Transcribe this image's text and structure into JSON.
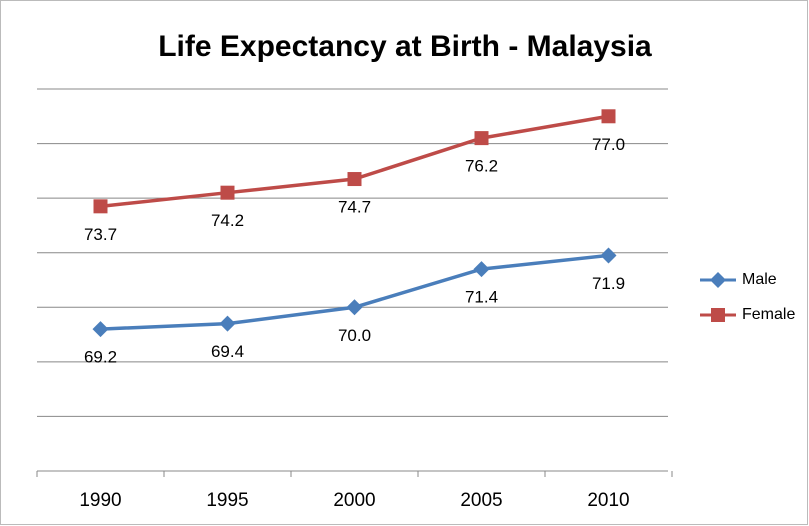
{
  "chart_data": {
    "type": "line",
    "title": "Life Expectancy at Birth - Malaysia",
    "categories": [
      "1990",
      "1995",
      "2000",
      "2005",
      "2010"
    ],
    "series": [
      {
        "name": "Male",
        "color": "#4a7ebb",
        "marker": "diamond",
        "values": [
          69.2,
          69.4,
          70.0,
          71.4,
          71.9
        ],
        "value_labels": [
          "69.2",
          "69.4",
          "70.0",
          "71.4",
          "71.9"
        ]
      },
      {
        "name": "Female",
        "color": "#be4b48",
        "marker": "square",
        "values": [
          73.7,
          74.2,
          74.7,
          76.2,
          77.0
        ],
        "value_labels": [
          "73.7",
          "74.2",
          "74.7",
          "76.2",
          "77.0"
        ]
      }
    ],
    "ylim": [
      64,
      78
    ],
    "yticks": [
      64,
      66,
      68,
      70,
      72,
      74,
      76,
      78
    ],
    "grid": true,
    "legend": "right"
  }
}
